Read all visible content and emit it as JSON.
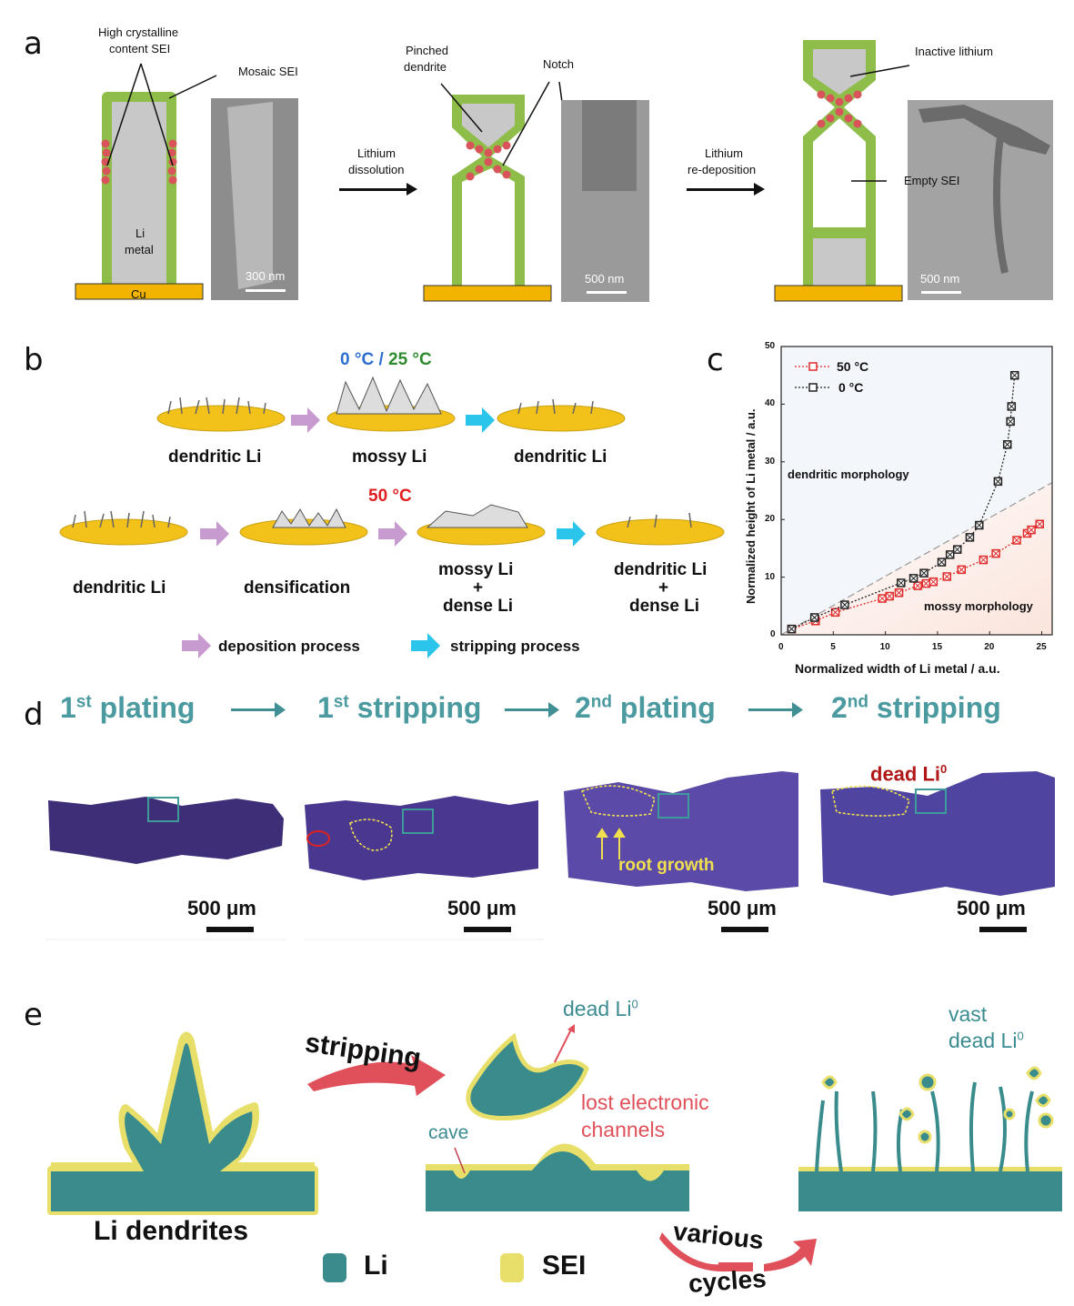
{
  "panels": {
    "a": "a",
    "b": "b",
    "c": "c",
    "d": "d",
    "e": "e"
  },
  "panel_a": {
    "high_crystalline": "High crystalline",
    "content_sei": "content SEI",
    "mosaic_sei": "Mosaic SEI",
    "li": "Li",
    "metal": "metal",
    "cu": "Cu",
    "scale1": "300 nm",
    "lithium_dissolution_1": "Lithium",
    "lithium_dissolution_2": "dissolution",
    "pinched": "Pinched",
    "dendrite": "dendrite",
    "notch": "Notch",
    "scale2": "500 nm",
    "redeposition_1": "Lithium",
    "redeposition_2": "re-deposition",
    "inactive_lithium": "Inactive lithium",
    "empty_sei": "Empty SEI",
    "scale3": "500 nm"
  },
  "panel_b": {
    "temp_0": "0 °C",
    "slash": " / ",
    "temp_25": "25 °C",
    "temp_50": "50 °C",
    "row1": [
      "dendritic Li",
      "mossy Li",
      "dendritic Li"
    ],
    "row2": [
      "dendritic Li",
      "densification",
      "mossy Li",
      "dendritic Li"
    ],
    "plus": "+",
    "dense_li": "dense Li",
    "legend_deposition": "deposition process",
    "legend_stripping": "stripping process",
    "colors": {
      "gold": "#f2c21a",
      "deposition": "#c79bd0",
      "stripping": "#2bc4ea",
      "blue": "#2c6fd1",
      "green": "#2e8b2e",
      "red": "#e02020"
    }
  },
  "chart_data": {
    "type": "scatter",
    "xlabel": "Normalized width of Li metal / a.u.",
    "ylabel": "Normalized height of Li metal / a.u.",
    "xlim": [
      0,
      26
    ],
    "ylim": [
      0,
      50
    ],
    "xticks": [
      0,
      5,
      10,
      15,
      20,
      25
    ],
    "yticks": [
      0,
      10,
      20,
      30,
      40,
      50
    ],
    "grid": false,
    "legend_placement": "top-left",
    "annotations": [
      "dendritic morphology",
      "mossy morphology"
    ],
    "series": [
      {
        "name": "50 °C",
        "color": "#e02a2a",
        "x": [
          1,
          3.3,
          5.2,
          9.7,
          10.4,
          11.3,
          13.1,
          13.9,
          14.6,
          15.9,
          17.3,
          19.4,
          20.6,
          22.6,
          23.6,
          24,
          24.8
        ],
        "y": [
          1,
          2.4,
          3.9,
          6.3,
          6.7,
          7.3,
          8.5,
          8.9,
          9.2,
          10.1,
          11.3,
          13,
          14.1,
          16.4,
          17.6,
          18.2,
          19.2
        ]
      },
      {
        "name": "0 °C",
        "color": "#222222",
        "x": [
          1,
          3.2,
          6.1,
          11.5,
          12.7,
          13.7,
          15.4,
          16.2,
          16.9,
          18.1,
          19,
          20.8,
          21.7,
          22,
          22.1,
          22.4
        ],
        "y": [
          1,
          3,
          5.2,
          9,
          9.8,
          10.7,
          12.6,
          13.9,
          14.8,
          16.9,
          19,
          26.6,
          33,
          37,
          39.6,
          45
        ]
      }
    ],
    "reference_line": {
      "x": [
        0,
        26
      ],
      "y": [
        0,
        26.4
      ]
    }
  },
  "panel_d": {
    "steps": [
      {
        "num": "1",
        "sup": "st",
        "word": "plating"
      },
      {
        "num": "1",
        "sup": "st",
        "word": "stripping"
      },
      {
        "num": "2",
        "sup": "nd",
        "word": "plating"
      },
      {
        "num": "2",
        "sup": "nd",
        "word": "stripping"
      }
    ],
    "scale": "500 μm",
    "root_growth": "root growth",
    "dead_li": "dead Li",
    "dead_li_sup": "0"
  },
  "panel_e": {
    "stripping": "stripping",
    "dead_li": "dead Li",
    "sup0": "0",
    "lost_1": "lost electronic",
    "lost_2": "channels",
    "cave": "cave",
    "vast": "vast",
    "vast_dead": "dead Li",
    "li_dendrites": "Li dendrites",
    "legend_li": "Li",
    "legend_sei": "SEI",
    "various": "various",
    "cycles": "cycles",
    "colors": {
      "li": "#3a8c8c",
      "sei": "#e8df6a",
      "red": "#e0505a"
    }
  }
}
